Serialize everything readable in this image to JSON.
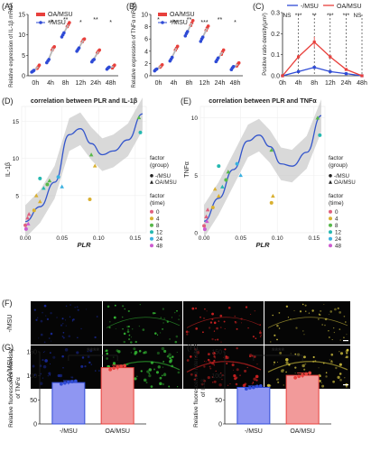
{
  "colors": {
    "oa": "#e8403c",
    "msu": "#2f4bd6",
    "gray": "#b8b8b8",
    "band": "#c4c4c4",
    "time": [
      "#e0607e",
      "#d9b030",
      "#58b84a",
      "#25b8b0",
      "#3ab0e0",
      "#cc5bd0"
    ]
  },
  "panels": {
    "A": {
      "letter": "(A)",
      "ylabel": "Relative expression of IL-1β mRNA"
    },
    "B": {
      "letter": "(B)",
      "ylabel": "Relative expression of TNFα mRNA"
    },
    "C": {
      "letter": "(C)",
      "ylabel": "Positive ratio density(μm²)"
    },
    "D": {
      "letter": "(D)",
      "title": "correlation between PLR and IL-1β",
      "ylabel": "IL-1β",
      "xlabel": "PLR"
    },
    "E": {
      "letter": "(E)",
      "title": "correlation between PLR and TNFα",
      "ylabel": "TNFα",
      "xlabel": "PLR"
    },
    "F": {
      "letter": "(F)",
      "row1": "-/MSU",
      "row2": "OA/MSU"
    },
    "G": {
      "letter": "(G)",
      "ylabel": "Relative fluorescence intensity of TNFα",
      "sig": "****"
    },
    "H": {
      "letter": "(H)",
      "ylabel": "Relative fluorescence intensity of IL1β",
      "sig": "****"
    }
  },
  "legend_ab": {
    "oa": "OA/MSU",
    "msu": "-/MSU"
  },
  "legend_c": {
    "msu": "-/MSU",
    "oa": "OA/MSU"
  },
  "legend_de": {
    "group_title": "factor\n(group)",
    "groups": [
      "-/MSU",
      "OA/MSU"
    ],
    "time_title": "factor\n(time)",
    "times": [
      "0",
      "4",
      "8",
      "12",
      "24",
      "48"
    ]
  },
  "chart_data": [
    {
      "panel": "A",
      "type": "scatter",
      "categories": [
        "0h",
        "4h",
        "8h",
        "12h",
        "24h",
        "48h"
      ],
      "ylim": [
        0,
        15
      ],
      "yticks": [
        0,
        5,
        10,
        15
      ],
      "series": [
        {
          "name": "OA/MSU",
          "values": [
            [
              1.8,
              2.2,
              2.6
            ],
            [
              6.3,
              6.8,
              7.1
            ],
            [
              12.0,
              12.5,
              13.0
            ],
            [
              8.3,
              8.8,
              9.0
            ],
            [
              5.6,
              6.0,
              6.3
            ],
            [
              1.9,
              2.3,
              2.6
            ]
          ]
        },
        {
          "name": "-/MSU",
          "values": [
            [
              0.9,
              1.1,
              1.3
            ],
            [
              3.2,
              3.6,
              4.0
            ],
            [
              9.5,
              10.0,
              10.5
            ],
            [
              6.0,
              6.4,
              6.8
            ],
            [
              3.4,
              3.8,
              4.0
            ],
            [
              1.6,
              1.9,
              2.1
            ]
          ]
        }
      ],
      "sig": [
        "",
        "**",
        "**",
        "*",
        "**",
        "*"
      ]
    },
    {
      "panel": "B",
      "type": "scatter",
      "categories": [
        "0h",
        "4h",
        "8h",
        "12h",
        "24h",
        "48h"
      ],
      "ylim": [
        0,
        10
      ],
      "yticks": [
        0,
        2,
        4,
        6,
        8,
        10
      ],
      "series": [
        {
          "name": "OA/MSU",
          "values": [
            [
              1.4,
              1.6,
              1.8
            ],
            [
              4.2,
              4.5,
              4.8
            ],
            [
              8.2,
              8.6,
              9.0
            ],
            [
              7.4,
              7.8,
              8.1
            ],
            [
              3.5,
              3.9,
              4.2
            ],
            [
              1.6,
              1.9,
              2.1
            ]
          ]
        },
        {
          "name": "-/MSU",
          "values": [
            [
              0.8,
              1.0,
              1.1
            ],
            [
              2.4,
              2.7,
              3.0
            ],
            [
              6.5,
              6.9,
              7.2
            ],
            [
              5.6,
              6.0,
              6.3
            ],
            [
              2.3,
              2.6,
              2.9
            ],
            [
              1.0,
              1.3,
              1.5
            ]
          ]
        }
      ],
      "sig": [
        "*",
        "***",
        "**",
        "***",
        "**",
        "*"
      ]
    },
    {
      "panel": "C",
      "type": "line",
      "categories": [
        "0h",
        "4h",
        "8h",
        "12h",
        "24h",
        "48h"
      ],
      "ylim": [
        0,
        0.3
      ],
      "yticks": [
        0.0,
        0.1,
        0.2,
        0.3
      ],
      "series": [
        {
          "name": "-/MSU",
          "values": [
            0.0,
            0.02,
            0.04,
            0.02,
            0.01,
            0.0
          ]
        },
        {
          "name": "OA/MSU",
          "values": [
            0.0,
            0.09,
            0.16,
            0.09,
            0.03,
            0.0
          ]
        }
      ],
      "sig": [
        "NS",
        "***",
        "**",
        "***",
        "***",
        "NS"
      ]
    },
    {
      "panel": "D",
      "type": "scatter",
      "xlim": [
        -0.005,
        0.165
      ],
      "ylim": [
        0,
        17
      ],
      "xticks": [
        0.0,
        0.05,
        0.1,
        0.15
      ],
      "yticks": [
        5,
        10,
        15
      ],
      "curve": [
        [
          0.0,
          1.5
        ],
        [
          0.02,
          3.5
        ],
        [
          0.04,
          6.8
        ],
        [
          0.06,
          13.2
        ],
        [
          0.075,
          14.0
        ],
        [
          0.09,
          12.0
        ],
        [
          0.105,
          10.5
        ],
        [
          0.12,
          11.0
        ],
        [
          0.14,
          12.5
        ],
        [
          0.16,
          16.0
        ]
      ],
      "points": [
        {
          "x": 0.0,
          "y": 1.0,
          "t": 0,
          "g": 0
        },
        {
          "x": 0.003,
          "y": 2.0,
          "t": 0,
          "g": 1
        },
        {
          "x": 0.005,
          "y": 2.5,
          "t": 0,
          "g": 1
        },
        {
          "x": 0.012,
          "y": 3.0,
          "t": 1,
          "g": 0
        },
        {
          "x": 0.015,
          "y": 5.0,
          "t": 1,
          "g": 1
        },
        {
          "x": 0.02,
          "y": 4.2,
          "t": 1,
          "g": 1
        },
        {
          "x": 0.03,
          "y": 6.5,
          "t": 2,
          "g": 0
        },
        {
          "x": 0.033,
          "y": 7.0,
          "t": 2,
          "g": 1
        },
        {
          "x": 0.02,
          "y": 7.3,
          "t": 3,
          "g": 0
        },
        {
          "x": 0.025,
          "y": 6.0,
          "t": 3,
          "g": 1
        },
        {
          "x": 0.045,
          "y": 7.5,
          "t": 4,
          "g": 0
        },
        {
          "x": 0.05,
          "y": 6.2,
          "t": 4,
          "g": 1
        },
        {
          "x": 0.001,
          "y": 0.5,
          "t": 5,
          "g": 0
        },
        {
          "x": 0.004,
          "y": 1.2,
          "t": 5,
          "g": 1
        },
        {
          "x": 0.09,
          "y": 10.5,
          "t": 2,
          "g": 1
        },
        {
          "x": 0.095,
          "y": 9.0,
          "t": 1,
          "g": 1
        },
        {
          "x": 0.088,
          "y": 4.5,
          "t": 1,
          "g": 0
        },
        {
          "x": 0.155,
          "y": 15.5,
          "t": 2,
          "g": 1
        },
        {
          "x": 0.157,
          "y": 13.5,
          "t": 3,
          "g": 0
        }
      ]
    },
    {
      "panel": "E",
      "type": "scatter",
      "xlim": [
        -0.005,
        0.165
      ],
      "ylim": [
        0,
        11
      ],
      "xticks": [
        0.0,
        0.05,
        0.1,
        0.15
      ],
      "yticks": [
        0,
        5,
        10
      ],
      "curve": [
        [
          0.0,
          1.0
        ],
        [
          0.02,
          3.0
        ],
        [
          0.04,
          5.5
        ],
        [
          0.06,
          8.0
        ],
        [
          0.075,
          8.5
        ],
        [
          0.09,
          7.5
        ],
        [
          0.105,
          6.0
        ],
        [
          0.12,
          5.8
        ],
        [
          0.14,
          7.0
        ],
        [
          0.16,
          10.2
        ]
      ],
      "points": [
        {
          "x": 0.0,
          "y": 0.6,
          "t": 0,
          "g": 0
        },
        {
          "x": 0.003,
          "y": 1.4,
          "t": 0,
          "g": 1
        },
        {
          "x": 0.005,
          "y": 2.0,
          "t": 0,
          "g": 1
        },
        {
          "x": 0.012,
          "y": 2.2,
          "t": 1,
          "g": 0
        },
        {
          "x": 0.015,
          "y": 3.8,
          "t": 1,
          "g": 1
        },
        {
          "x": 0.02,
          "y": 3.2,
          "t": 1,
          "g": 1
        },
        {
          "x": 0.03,
          "y": 4.6,
          "t": 2,
          "g": 0
        },
        {
          "x": 0.033,
          "y": 5.3,
          "t": 2,
          "g": 1
        },
        {
          "x": 0.02,
          "y": 5.8,
          "t": 3,
          "g": 0
        },
        {
          "x": 0.025,
          "y": 4.0,
          "t": 3,
          "g": 1
        },
        {
          "x": 0.045,
          "y": 6.0,
          "t": 4,
          "g": 0
        },
        {
          "x": 0.05,
          "y": 5.0,
          "t": 4,
          "g": 1
        },
        {
          "x": 0.001,
          "y": 0.3,
          "t": 5,
          "g": 0
        },
        {
          "x": 0.004,
          "y": 1.0,
          "t": 5,
          "g": 1
        },
        {
          "x": 0.092,
          "y": 7.2,
          "t": 2,
          "g": 1
        },
        {
          "x": 0.094,
          "y": 3.2,
          "t": 1,
          "g": 1
        },
        {
          "x": 0.092,
          "y": 2.6,
          "t": 1,
          "g": 0
        },
        {
          "x": 0.155,
          "y": 10.0,
          "t": 2,
          "g": 1
        },
        {
          "x": 0.158,
          "y": 8.5,
          "t": 3,
          "g": 0
        }
      ]
    },
    {
      "panel": "G",
      "type": "bar",
      "categories": [
        "-/MSU",
        "OA/MSU"
      ],
      "values": [
        86,
        117
      ],
      "err": [
        4,
        5
      ],
      "ylim": [
        0,
        150
      ],
      "yticks": [
        0,
        50,
        100,
        150
      ],
      "dots": [
        [
          83,
          85,
          87,
          88,
          89
        ],
        [
          113,
          116,
          118,
          120,
          121
        ]
      ]
    },
    {
      "panel": "H",
      "type": "bar",
      "categories": [
        "-/MSU",
        "OA/MSU"
      ],
      "values": [
        76,
        101
      ],
      "err": [
        3,
        5
      ],
      "ylim": [
        0,
        150
      ],
      "yticks": [
        0,
        50,
        100,
        150
      ],
      "dots": [
        [
          73,
          75,
          76,
          78,
          79
        ],
        [
          96,
          99,
          101,
          104,
          106
        ]
      ]
    }
  ]
}
